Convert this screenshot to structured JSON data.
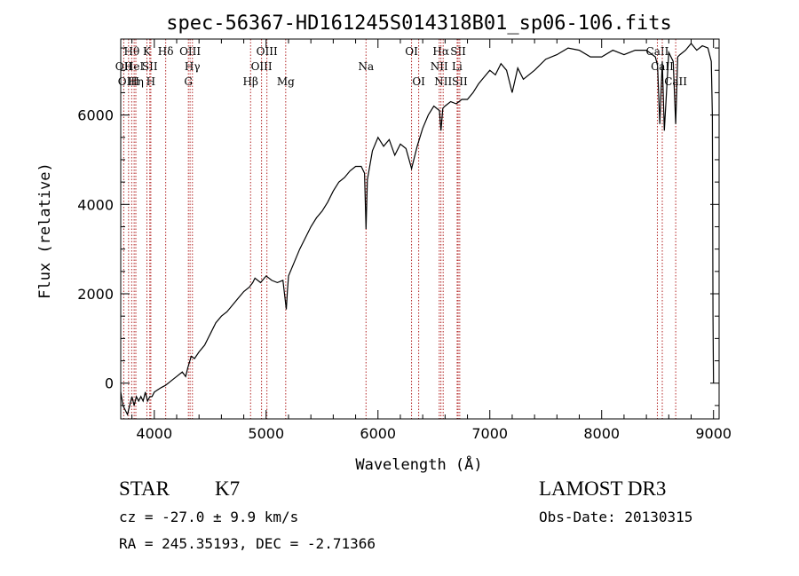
{
  "chart_data": {
    "type": "line",
    "title": "spec-56367-HD161245S014318B01_sp06-106.fits",
    "xlabel": "Wavelength (Å)",
    "ylabel": "Flux (relative)",
    "xlim": [
      3700,
      9050
    ],
    "ylim": [
      -800,
      7700
    ],
    "x_ticks": [
      4000,
      5000,
      6000,
      7000,
      8000,
      9000
    ],
    "y_ticks": [
      0,
      2000,
      4000,
      6000
    ],
    "grid": false,
    "line_color": "#000000",
    "marker_color": "#b22222",
    "series": [
      {
        "name": "spectrum",
        "x": [
          3700,
          3720,
          3740,
          3760,
          3780,
          3800,
          3820,
          3840,
          3860,
          3880,
          3900,
          3920,
          3940,
          3960,
          3980,
          4000,
          4030,
          4060,
          4100,
          4150,
          4200,
          4250,
          4280,
          4300,
          4330,
          4360,
          4400,
          4450,
          4500,
          4550,
          4600,
          4650,
          4700,
          4750,
          4800,
          4850,
          4880,
          4900,
          4950,
          5000,
          5050,
          5100,
          5150,
          5180,
          5190,
          5200,
          5250,
          5300,
          5350,
          5400,
          5450,
          5500,
          5550,
          5600,
          5650,
          5700,
          5750,
          5800,
          5850,
          5880,
          5893,
          5905,
          5950,
          6000,
          6050,
          6100,
          6150,
          6200,
          6250,
          6300,
          6350,
          6400,
          6450,
          6500,
          6550,
          6563,
          6580,
          6600,
          6650,
          6700,
          6750,
          6800,
          6850,
          6900,
          6950,
          7000,
          7050,
          7100,
          7150,
          7200,
          7250,
          7300,
          7400,
          7500,
          7600,
          7700,
          7800,
          7900,
          8000,
          8100,
          8200,
          8300,
          8400,
          8480,
          8500,
          8520,
          8542,
          8560,
          8600,
          8640,
          8662,
          8680,
          8700,
          8750,
          8800,
          8850,
          8900,
          8950,
          8980,
          8990,
          8995,
          9000
        ],
        "values": [
          -200,
          -500,
          -600,
          -700,
          -500,
          -300,
          -500,
          -300,
          -400,
          -300,
          -400,
          -200,
          -400,
          -300,
          -300,
          -200,
          -150,
          -100,
          -50,
          50,
          150,
          250,
          150,
          350,
          600,
          550,
          700,
          850,
          1100,
          1350,
          1500,
          1600,
          1750,
          1900,
          2050,
          2150,
          2250,
          2350,
          2250,
          2400,
          2300,
          2250,
          2300,
          1650,
          2050,
          2400,
          2700,
          3000,
          3250,
          3500,
          3700,
          3850,
          4050,
          4300,
          4500,
          4600,
          4750,
          4850,
          4850,
          4700,
          3450,
          4550,
          5200,
          5500,
          5300,
          5450,
          5100,
          5350,
          5250,
          4800,
          5300,
          5700,
          6000,
          6200,
          6100,
          5650,
          6150,
          6200,
          6300,
          6250,
          6350,
          6350,
          6500,
          6700,
          6850,
          7000,
          6900,
          7150,
          7000,
          6500,
          7050,
          6800,
          7000,
          7250,
          7350,
          7500,
          7450,
          7300,
          7300,
          7450,
          7350,
          7450,
          7450,
          7300,
          7100,
          5800,
          7200,
          5650,
          7400,
          7200,
          5800,
          7300,
          7350,
          7450,
          7600,
          7450,
          7550,
          7500,
          7200,
          6000,
          1500,
          0
        ]
      }
    ],
    "line_markers": [
      {
        "label": "OII",
        "x": 3727,
        "row": 1
      },
      {
        "label": "OIII",
        "x": 3770,
        "row": 2
      },
      {
        "label": "Hθ",
        "x": 3798,
        "row": 0
      },
      {
        "label": "HeI",
        "x": 3820,
        "row": 1
      },
      {
        "label": "Hη",
        "x": 3835,
        "row": 2
      },
      {
        "label": "K",
        "x": 3934,
        "row": 0
      },
      {
        "label": "SII",
        "x": 3960,
        "row": 1
      },
      {
        "label": "H",
        "x": 3969,
        "row": 2
      },
      {
        "label": "Hδ",
        "x": 4102,
        "row": 0
      },
      {
        "label": "OIII",
        "x": 4320,
        "row": 0
      },
      {
        "label": "Hγ",
        "x": 4341,
        "row": 1
      },
      {
        "label": "G",
        "x": 4305,
        "row": 2
      },
      {
        "label": "Hβ",
        "x": 4861,
        "row": 2
      },
      {
        "label": "OIII",
        "x": 4959,
        "row": 1
      },
      {
        "label": "OIII",
        "x": 5007,
        "row": 0
      },
      {
        "label": "Mg",
        "x": 5175,
        "row": 2
      },
      {
        "label": "Na",
        "x": 5893,
        "row": 1
      },
      {
        "label": "OI",
        "x": 6300,
        "row": 0
      },
      {
        "label": "OI",
        "x": 6364,
        "row": 2
      },
      {
        "label": "Hα",
        "x": 6563,
        "row": 0
      },
      {
        "label": "NII",
        "x": 6548,
        "row": 1
      },
      {
        "label": "NII",
        "x": 6583,
        "row": 2
      },
      {
        "label": "SII",
        "x": 6717,
        "row": 0
      },
      {
        "label": "Li",
        "x": 6708,
        "row": 1
      },
      {
        "label": "SII",
        "x": 6731,
        "row": 2
      },
      {
        "label": "CaII",
        "x": 8498,
        "row": 0
      },
      {
        "label": "CaII",
        "x": 8542,
        "row": 1
      },
      {
        "label": "CaII",
        "x": 8662,
        "row": 2
      }
    ]
  },
  "info": {
    "object_class": "STAR",
    "subclass": "K7",
    "survey": "LAMOST DR3",
    "redshift_text": "cz = -27.0 ± 9.9 km/s",
    "obs_date_text": "Obs-Date: 20130315",
    "coords_text": "RA = 245.35193, DEC =  -2.71366"
  }
}
